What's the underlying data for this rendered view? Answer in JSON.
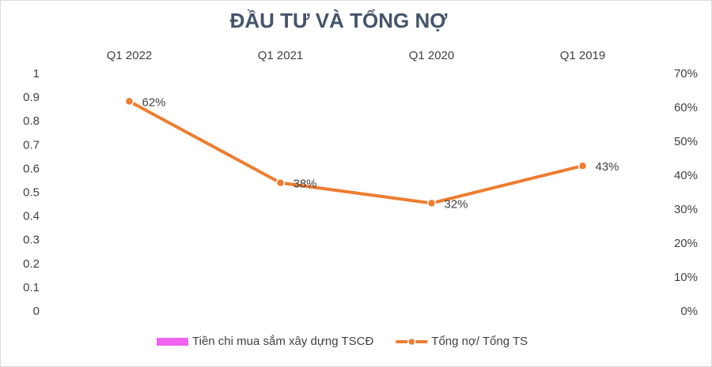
{
  "chart_data": {
    "type": "combo",
    "title": "ĐẦU TƯ VÀ TỔNG NỢ",
    "categories": [
      "Q1 2022",
      "Q1 2021",
      "Q1 2020",
      "Q1 2019"
    ],
    "x_axis_position": "top",
    "series": [
      {
        "name": "Tiền chi mua sắm xây dựng TSCĐ",
        "type": "bar",
        "color": "#f064f0",
        "values": [
          null,
          null,
          null,
          null
        ]
      },
      {
        "name": "Tổng nợ/ Tổng TS",
        "type": "line",
        "axis": "y2",
        "color": "#ed7d31",
        "values": [
          62,
          38,
          32,
          43
        ],
        "value_labels": [
          "62%",
          "38%",
          "32%",
          "43%"
        ]
      }
    ],
    "ylim": [
      0,
      1
    ],
    "yticks": [
      0,
      0.1,
      0.2,
      0.3,
      0.4,
      0.5,
      0.6,
      0.7,
      0.8,
      0.9,
      1
    ],
    "y2lim": [
      0,
      70
    ],
    "y2ticks": [
      {
        "value": 0,
        "label": "0%"
      },
      {
        "value": 10,
        "label": "10%"
      },
      {
        "value": 20,
        "label": "20%"
      },
      {
        "value": 30,
        "label": "30%"
      },
      {
        "value": 40,
        "label": "40%"
      },
      {
        "value": 50,
        "label": "50%"
      },
      {
        "value": 60,
        "label": "60%"
      },
      {
        "value": 70,
        "label": "70%"
      }
    ],
    "grid": false,
    "legend": "bottom"
  }
}
